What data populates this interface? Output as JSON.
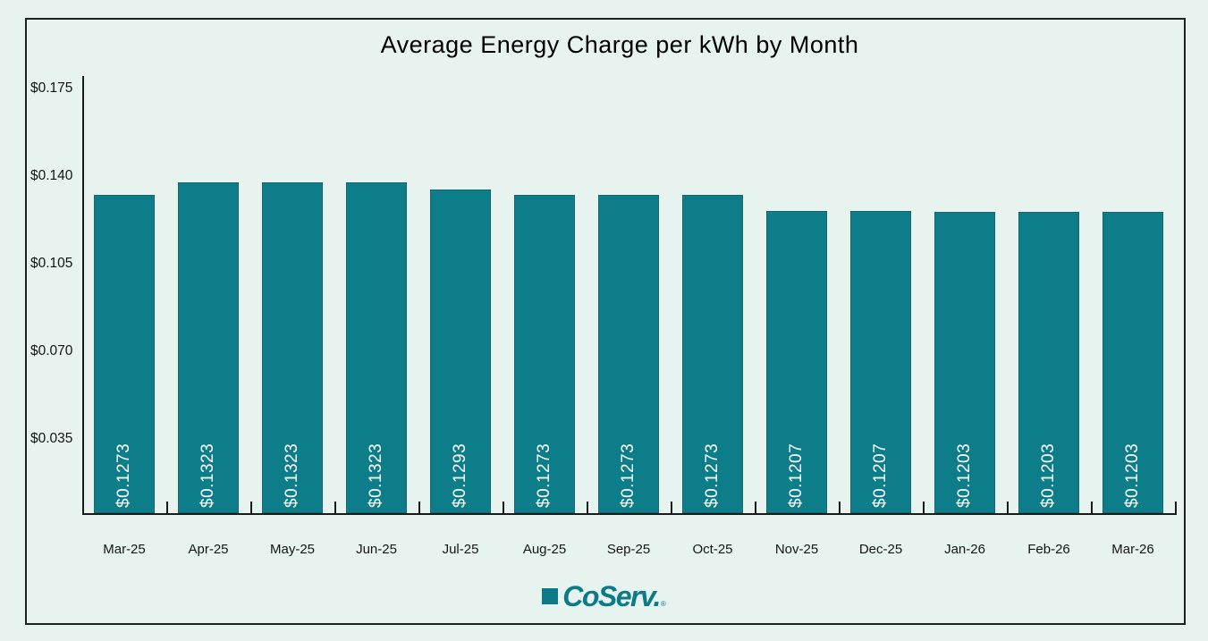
{
  "title": "Average Energy Charge per kWh by Month",
  "chart_data": {
    "type": "bar",
    "title": "Average Energy Charge per kWh by Month",
    "categories": [
      "Mar-25",
      "Apr-25",
      "May-25",
      "Jun-25",
      "Jul-25",
      "Aug-25",
      "Sep-25",
      "Oct-25",
      "Nov-25",
      "Dec-25",
      "Jan-26",
      "Feb-26",
      "Mar-26"
    ],
    "values": [
      0.1273,
      0.1323,
      0.1323,
      0.1323,
      0.1293,
      0.1273,
      0.1273,
      0.1273,
      0.1207,
      0.1207,
      0.1203,
      0.1203,
      0.1203
    ],
    "bar_labels": [
      "$0.1273",
      "$0.1323",
      "$0.1323",
      "$0.1323",
      "$0.1293",
      "$0.1273",
      "$0.1273",
      "$0.1273",
      "$0.1207",
      "$0.1207",
      "$0.1203",
      "$0.1203",
      "$0.1203"
    ],
    "xlabel": "",
    "ylabel": "",
    "ylim": [
      0,
      0.175
    ],
    "y_ticks": [
      {
        "label": "$0.175",
        "value": 0.175
      },
      {
        "label": "$0.140",
        "value": 0.14
      },
      {
        "label": "$0.105",
        "value": 0.105
      },
      {
        "label": "$0.070",
        "value": 0.07
      },
      {
        "label": "$0.035",
        "value": 0.035
      }
    ],
    "grid": false,
    "legend": "none",
    "bar_color": "#0c7d89",
    "value_label_color": "#ffffff",
    "axis_color": "#1a1a1a",
    "background": "#e6f3ef"
  },
  "footer": {
    "logo_text": "CoServ.",
    "registered_mark": "®",
    "logo_color": "#0d7b87"
  }
}
